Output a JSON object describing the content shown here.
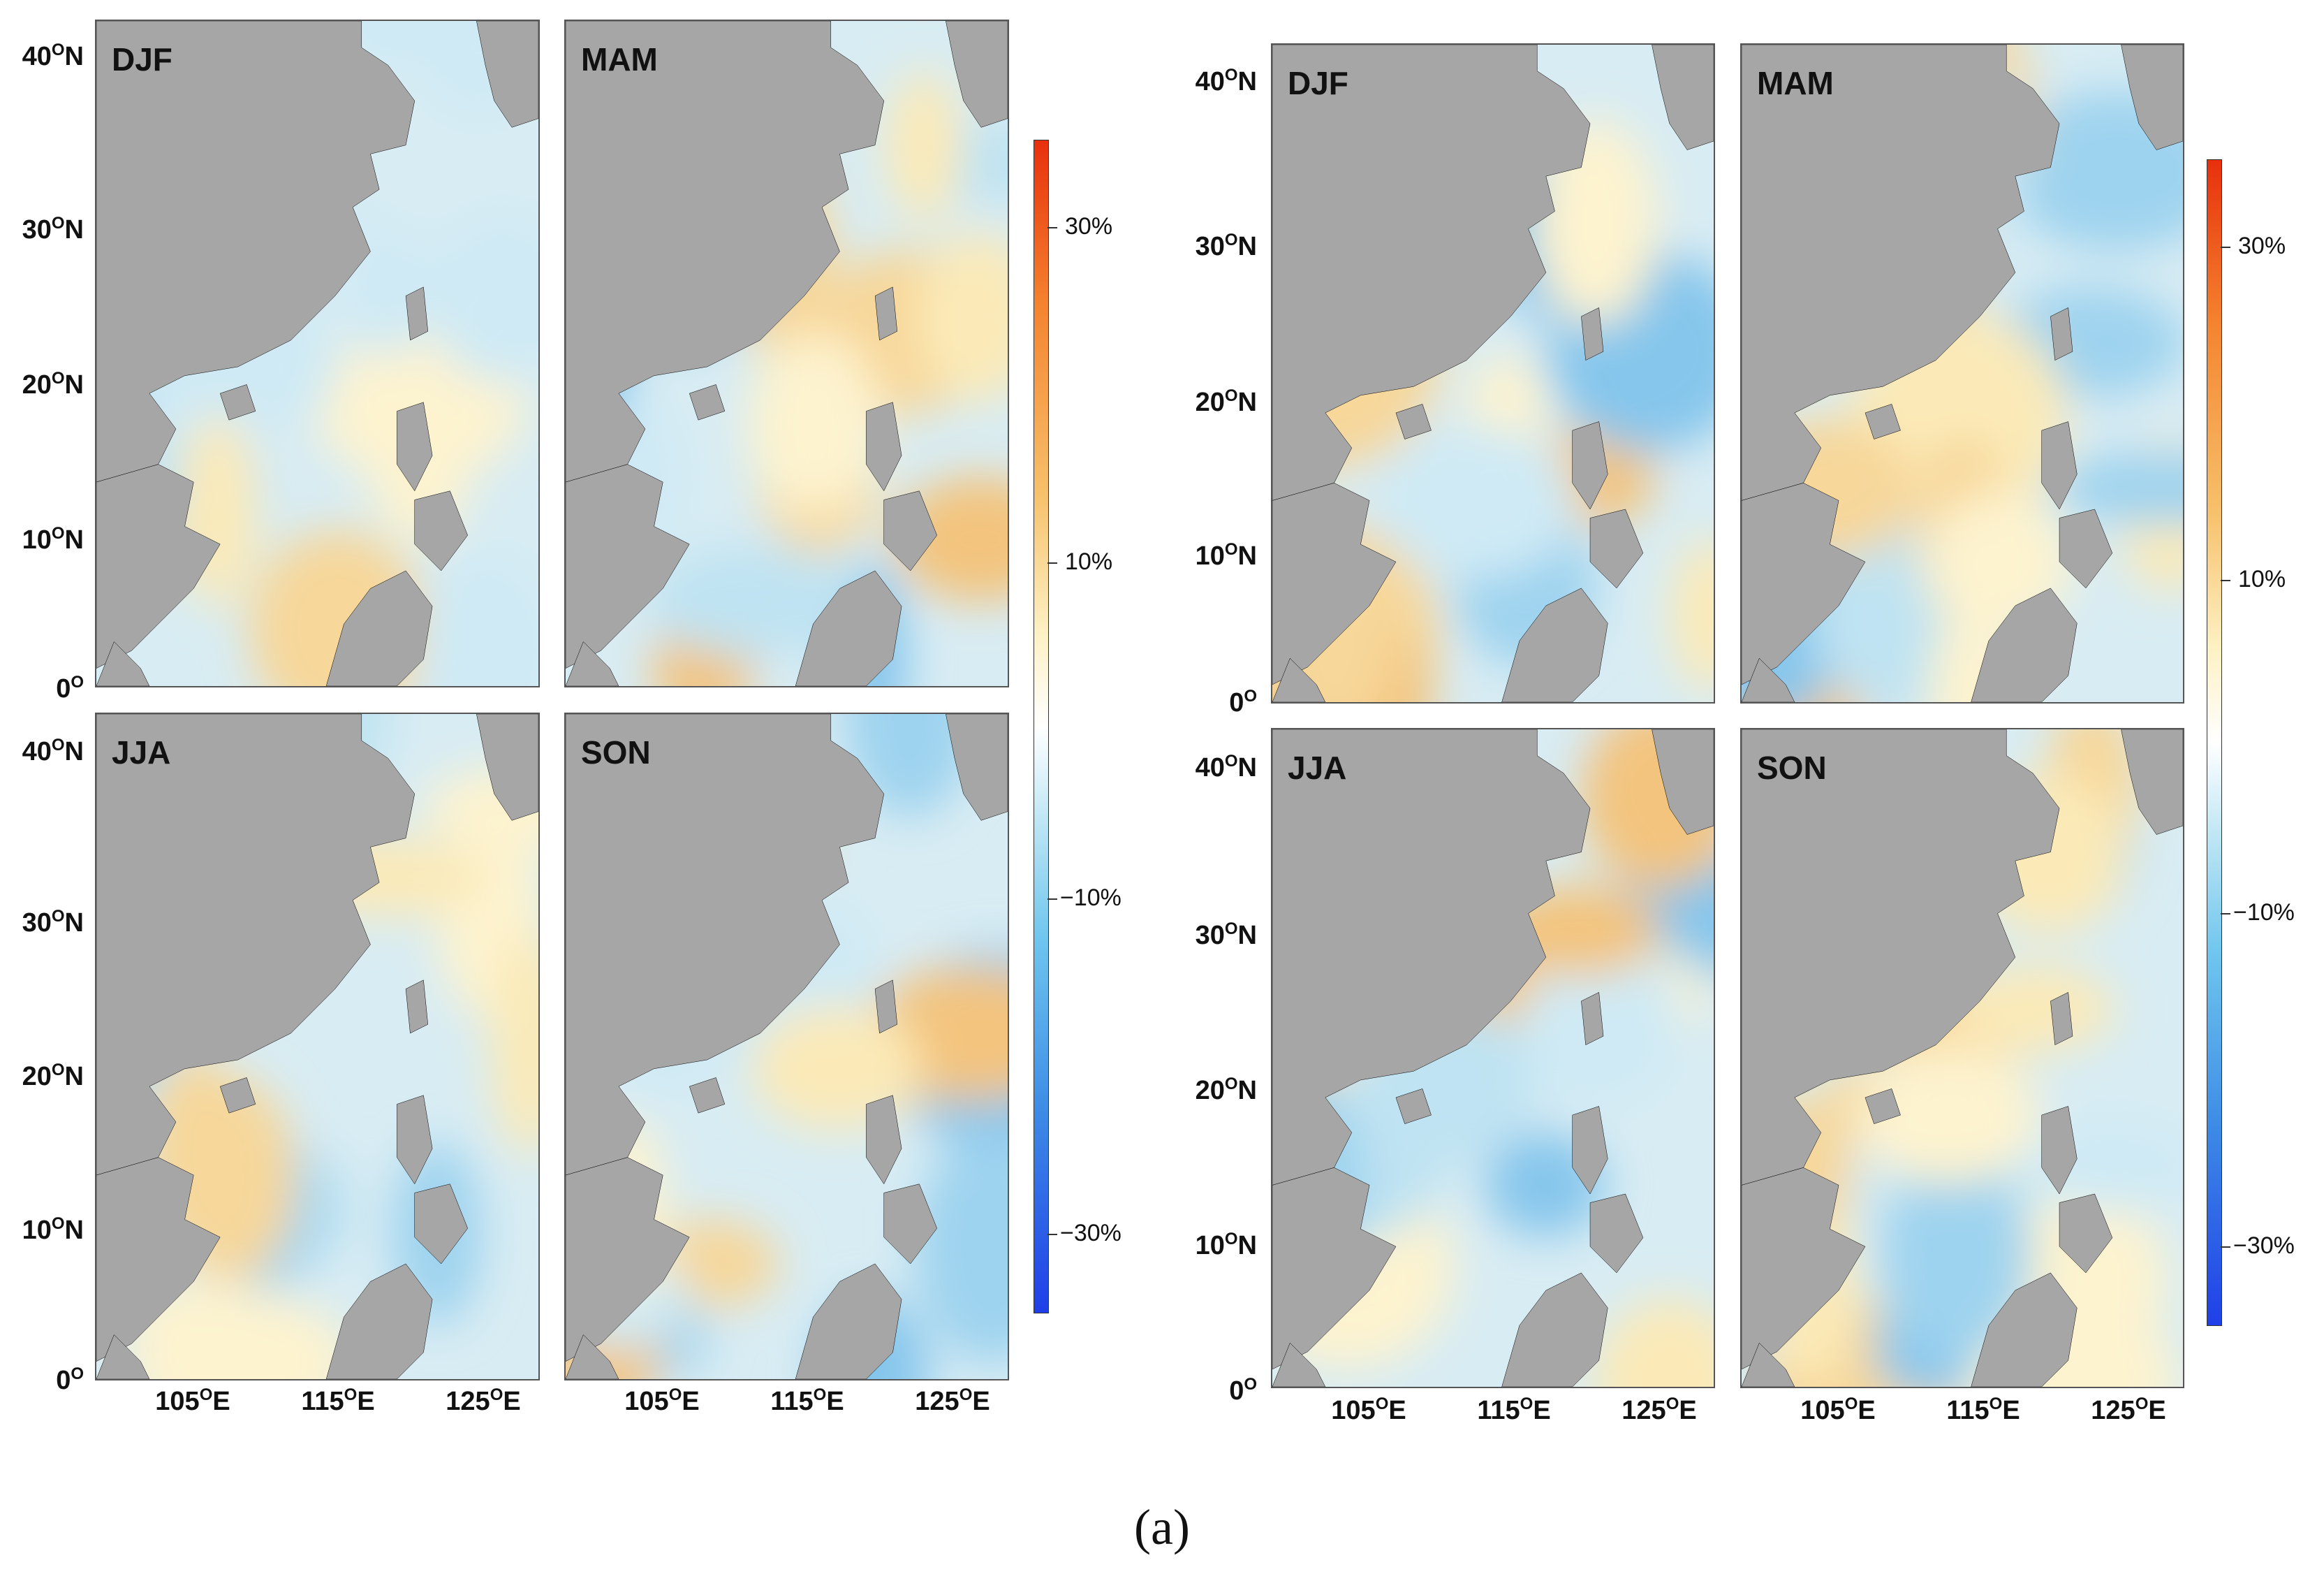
{
  "caption": "(a)",
  "season_labels": [
    "DJF",
    "MAM",
    "JJA",
    "SON"
  ],
  "latitude_ticks": [
    {
      "deg": "40",
      "sup": "O",
      "hemi": "N"
    },
    {
      "deg": "30",
      "sup": "O",
      "hemi": "N"
    },
    {
      "deg": "20",
      "sup": "O",
      "hemi": "N"
    },
    {
      "deg": "10",
      "sup": "O",
      "hemi": "N"
    },
    {
      "deg": "0",
      "sup": "O",
      "hemi": ""
    }
  ],
  "longitude_ticks": [
    {
      "deg": "105",
      "sup": "O",
      "hemi": "E"
    },
    {
      "deg": "115",
      "sup": "O",
      "hemi": "E"
    },
    {
      "deg": "125",
      "sup": "O",
      "hemi": "E"
    }
  ],
  "colorbar_ticks": [
    "30%",
    "10%",
    "−10%",
    "−30%"
  ],
  "colors": {
    "land": "#a6a6a6",
    "coast": "#000000",
    "positive_max": "#e8300c",
    "negative_max": "#1f3fe8",
    "zero": "#ffffff"
  }
}
